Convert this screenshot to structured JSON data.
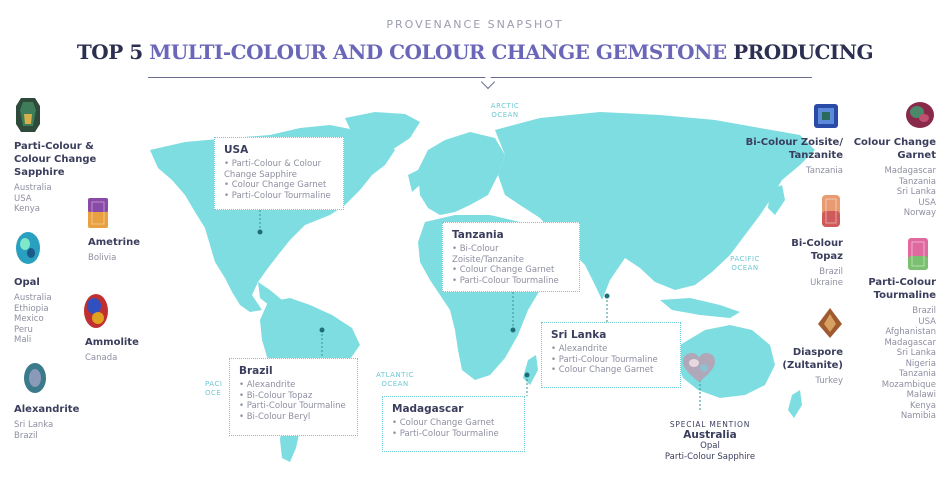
{
  "header": {
    "kicker": "PROVENANCE SNAPSHOT",
    "title_prefix": "TOP 5 ",
    "title_accent": "MULTI-COLOUR AND COLOUR CHANGE GEMSTONE",
    "title_suffix": " PRODUCING"
  },
  "oceans": {
    "arctic": [
      "ARCTIC",
      "OCEAN"
    ],
    "pacific_east": [
      "PACIFIC",
      "OCEAN"
    ],
    "atlantic": [
      "ATLANTIC",
      "OCEAN"
    ],
    "pacific_west": [
      "PACI",
      "OCE"
    ]
  },
  "left_gems": [
    {
      "name": [
        "Parti-Colour &",
        "Colour Change",
        "Sapphire"
      ],
      "countries": [
        "Australia",
        "USA",
        "Kenya"
      ]
    },
    {
      "name": [
        "Ametrine"
      ],
      "countries": [
        "Bolivia"
      ]
    },
    {
      "name": [
        "Opal"
      ],
      "countries": [
        "Australia",
        "Ethiopia",
        "Mexico",
        "Peru",
        "Mali"
      ]
    },
    {
      "name": [
        "Ammolite"
      ],
      "countries": [
        "Canada"
      ]
    },
    {
      "name": [
        "Alexandrite"
      ],
      "countries": [
        "Sri Lanka",
        "Brazil"
      ]
    }
  ],
  "right_gems": [
    {
      "name": [
        "Bi-Colour Zoisite/",
        "Tanzanite"
      ],
      "countries": [
        "Tanzania"
      ]
    },
    {
      "name": [
        "Colour Change",
        "Garnet"
      ],
      "countries": [
        "Madagascar",
        "Tanzania",
        "Sri Lanka",
        "USA",
        "Norway"
      ]
    },
    {
      "name": [
        "Bi-Colour",
        "Topaz"
      ],
      "countries": [
        "Brazil",
        "Ukraine"
      ]
    },
    {
      "name": [
        "Parti-Colour",
        "Tourmaline"
      ],
      "countries": [
        "Brazil",
        "USA",
        "Afghanistan",
        "Madagascar",
        "Sri Lanka",
        "Nigeria",
        "Tanzania",
        "Mozambique",
        "Malawi",
        "Kenya",
        "Namibia"
      ]
    },
    {
      "name": [
        "Diaspore",
        "(Zultanite)"
      ],
      "countries": [
        "Turkey"
      ]
    }
  ],
  "callouts": {
    "usa": {
      "title": "USA",
      "items": [
        "Parti-Colour & Colour Change Sapphire",
        "Colour Change Garnet",
        "Parti-Colour Tourmaline"
      ]
    },
    "tanzania": {
      "title": "Tanzania",
      "items": [
        "Bi-Colour Zoisite/Tanzanite",
        "Colour Change Garnet",
        "Parti-Colour Tourmaline"
      ]
    },
    "srilanka": {
      "title": "Sri Lanka",
      "items": [
        "Alexandrite",
        "Parti-Colour Tourmaline",
        "Colour Change Garnet"
      ]
    },
    "brazil": {
      "title": "Brazil",
      "items": [
        "Alexandrite",
        "Bi-Colour Topaz",
        "Parti-Colour Tourmaline",
        "Bi-Colour Beryl"
      ]
    },
    "madagascar": {
      "title": "Madagascar",
      "items": [
        "Colour Change Garnet",
        "Parti-Colour Tourmaline"
      ]
    }
  },
  "special": {
    "label": "SPECIAL MENTION",
    "country": "Australia",
    "items": [
      "Opal",
      "Parti-Colour Sapphire"
    ]
  },
  "colors": {
    "land": "#7ddde0",
    "accent": "#6b67b8",
    "text": "#3a3d5c",
    "muted": "#8d8fa0"
  }
}
